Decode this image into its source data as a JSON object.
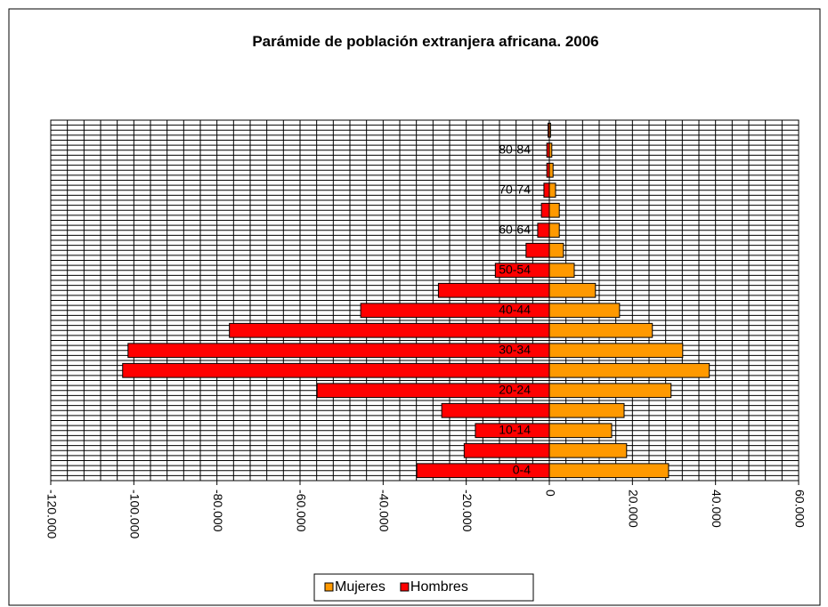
{
  "chart_data": {
    "type": "bar",
    "orientation": "horizontal",
    "title": "Parámide de población extranjera africana. 2006",
    "categories": [
      "0-4",
      null,
      "10-14",
      null,
      "20-24",
      null,
      "30-34",
      null,
      "40-44",
      null,
      "50-54",
      null,
      "60-64",
      null,
      "70-74",
      null,
      "80-84",
      null
    ],
    "series": [
      {
        "name": "Mujeres",
        "color": "#ff9900",
        "values": [
          28700,
          18600,
          15000,
          18000,
          29300,
          38500,
          32100,
          24800,
          16900,
          11100,
          6000,
          3400,
          2400,
          2400,
          1500,
          900,
          600,
          300
        ]
      },
      {
        "name": "Hombres",
        "color": "#ff0000",
        "values": [
          -31900,
          -20500,
          -17800,
          -25900,
          -55900,
          -102700,
          -101400,
          -77000,
          -45400,
          -26700,
          -13000,
          -5600,
          -2800,
          -1900,
          -1300,
          -600,
          -600,
          -300
        ]
      }
    ],
    "xlim": [
      -120000,
      60000
    ],
    "xticks": [
      {
        "value": -120000,
        "label": "-120.000"
      },
      {
        "value": -100000,
        "label": "-100.000"
      },
      {
        "value": -80000,
        "label": "-80.000"
      },
      {
        "value": -60000,
        "label": "-60.000"
      },
      {
        "value": -40000,
        "label": "-40.000"
      },
      {
        "value": -20000,
        "label": "-20.000"
      },
      0,
      {
        "value": 20000,
        "label": "20.000"
      },
      {
        "value": 40000,
        "label": "40.000"
      },
      {
        "value": 60000,
        "label": "60.000"
      }
    ],
    "grid": true,
    "legend": "bottom"
  }
}
